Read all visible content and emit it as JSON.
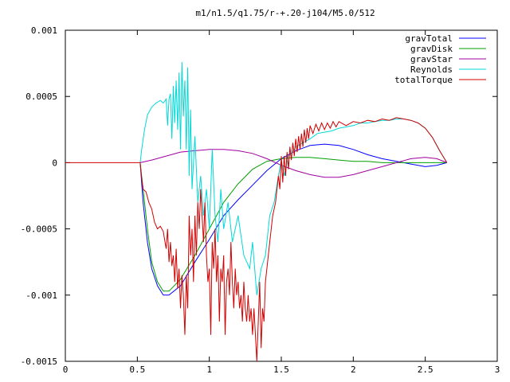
{
  "chart_data": {
    "type": "line",
    "title": "m1/n1.5/q1.75/r-+.20-j104/M5.0/512",
    "xlabel": "",
    "ylabel": "",
    "xlim": [
      0,
      3
    ],
    "ylim": [
      -0.0015,
      0.001
    ],
    "grid": false,
    "legend_placement": "top-right",
    "x_ticks": [
      "0",
      "0.5",
      "1",
      "1.5",
      "2",
      "2.5",
      "3"
    ],
    "y_ticks": [
      "0.001",
      "0.0005",
      "0",
      "-0.0005",
      "-0.001",
      "-0.0015"
    ],
    "series": [
      {
        "name": "gravTotal",
        "color": "#0000ff",
        "points": [
          [
            0.52,
            0
          ],
          [
            0.54,
            -0.0003
          ],
          [
            0.57,
            -0.0006
          ],
          [
            0.6,
            -0.0008
          ],
          [
            0.64,
            -0.00093
          ],
          [
            0.68,
            -0.001
          ],
          [
            0.72,
            -0.001
          ],
          [
            0.8,
            -0.00093
          ],
          [
            0.9,
            -0.00075
          ],
          [
            1.0,
            -0.00058
          ],
          [
            1.1,
            -0.0004
          ],
          [
            1.2,
            -0.00028
          ],
          [
            1.3,
            -0.00017
          ],
          [
            1.4,
            -6e-05
          ],
          [
            1.5,
            3e-05
          ],
          [
            1.6,
            9e-05
          ],
          [
            1.7,
            0.00013
          ],
          [
            1.8,
            0.00014
          ],
          [
            1.9,
            0.00013
          ],
          [
            2.0,
            0.0001
          ],
          [
            2.1,
            6e-05
          ],
          [
            2.2,
            3e-05
          ],
          [
            2.3,
            1e-05
          ],
          [
            2.4,
            -1e-05
          ],
          [
            2.5,
            -3e-05
          ],
          [
            2.58,
            -2e-05
          ],
          [
            2.65,
            0
          ]
        ]
      },
      {
        "name": "gravDisk",
        "color": "#00a000",
        "points": [
          [
            0.52,
            0
          ],
          [
            0.54,
            -0.0002
          ],
          [
            0.57,
            -0.0005
          ],
          [
            0.6,
            -0.00075
          ],
          [
            0.64,
            -0.0009
          ],
          [
            0.68,
            -0.00097
          ],
          [
            0.72,
            -0.00097
          ],
          [
            0.8,
            -0.00088
          ],
          [
            0.9,
            -0.0007
          ],
          [
            1.0,
            -0.0005
          ],
          [
            1.1,
            -0.0003
          ],
          [
            1.2,
            -0.00016
          ],
          [
            1.3,
            -5e-05
          ],
          [
            1.4,
            1e-05
          ],
          [
            1.5,
            3e-05
          ],
          [
            1.6,
            4e-05
          ],
          [
            1.7,
            4e-05
          ],
          [
            1.8,
            3e-05
          ],
          [
            1.9,
            2e-05
          ],
          [
            2.0,
            1e-05
          ],
          [
            2.1,
            1e-05
          ],
          [
            2.2,
            0
          ],
          [
            2.3,
            0
          ],
          [
            2.4,
            0
          ],
          [
            2.5,
            0
          ],
          [
            2.58,
            0
          ],
          [
            2.65,
            0
          ]
        ]
      },
      {
        "name": "gravStar",
        "color": "#a000a0",
        "points": [
          [
            0.52,
            0
          ],
          [
            0.6,
            2e-05
          ],
          [
            0.7,
            5e-05
          ],
          [
            0.8,
            8e-05
          ],
          [
            0.9,
            9e-05
          ],
          [
            1.0,
            0.0001
          ],
          [
            1.1,
            0.0001
          ],
          [
            1.2,
            9e-05
          ],
          [
            1.3,
            7e-05
          ],
          [
            1.4,
            3e-05
          ],
          [
            1.5,
            -2e-05
          ],
          [
            1.6,
            -6e-05
          ],
          [
            1.7,
            -9e-05
          ],
          [
            1.8,
            -0.00011
          ],
          [
            1.9,
            -0.00011
          ],
          [
            2.0,
            -9e-05
          ],
          [
            2.1,
            -6e-05
          ],
          [
            2.2,
            -3e-05
          ],
          [
            2.3,
            0
          ],
          [
            2.4,
            3e-05
          ],
          [
            2.5,
            4e-05
          ],
          [
            2.58,
            3e-05
          ],
          [
            2.65,
            0
          ]
        ]
      },
      {
        "name": "Reynolds",
        "color": "#00d8d8",
        "points": [
          [
            0.52,
            0
          ],
          [
            0.53,
            0.0001
          ],
          [
            0.55,
            0.00025
          ],
          [
            0.57,
            0.00036
          ],
          [
            0.6,
            0.00042
          ],
          [
            0.63,
            0.00045
          ],
          [
            0.66,
            0.00047
          ],
          [
            0.68,
            0.00045
          ],
          [
            0.7,
            0.00048
          ],
          [
            0.71,
            0.00028
          ],
          [
            0.72,
            0.00048
          ],
          [
            0.73,
            0.00052
          ],
          [
            0.74,
            0.00018
          ],
          [
            0.75,
            0.00058
          ],
          [
            0.76,
            0.0003
          ],
          [
            0.77,
            0.00062
          ],
          [
            0.78,
            0.00025
          ],
          [
            0.79,
            0.00068
          ],
          [
            0.8,
            0.0001
          ],
          [
            0.81,
            0.00076
          ],
          [
            0.82,
            0.00035
          ],
          [
            0.83,
            0.00062
          ],
          [
            0.84,
            0.0001
          ],
          [
            0.85,
            0.00072
          ],
          [
            0.86,
            -0.0001
          ],
          [
            0.87,
            0.0004
          ],
          [
            0.88,
            -0.0002
          ],
          [
            0.9,
            0.0002
          ],
          [
            0.92,
            -0.0003
          ],
          [
            0.94,
            -0.0001
          ],
          [
            0.96,
            -0.0004
          ],
          [
            0.98,
            -0.0002
          ],
          [
            1.0,
            -0.0005
          ],
          [
            1.02,
            0.0001
          ],
          [
            1.04,
            -0.0004
          ],
          [
            1.06,
            -0.0006
          ],
          [
            1.08,
            -0.0002
          ],
          [
            1.1,
            -0.0005
          ],
          [
            1.13,
            -0.0003
          ],
          [
            1.16,
            -0.0006
          ],
          [
            1.2,
            -0.0004
          ],
          [
            1.24,
            -0.0007
          ],
          [
            1.28,
            -0.0008
          ],
          [
            1.3,
            -0.0006
          ],
          [
            1.33,
            -0.001
          ],
          [
            1.36,
            -0.0008
          ],
          [
            1.39,
            -0.0007
          ],
          [
            1.42,
            -0.0004
          ],
          [
            1.45,
            -0.0003
          ],
          [
            1.48,
            -0.0001
          ],
          [
            1.5,
            2e-05
          ],
          [
            1.52,
            -0.0001
          ],
          [
            1.55,
            5e-05
          ],
          [
            1.58,
            8e-05
          ],
          [
            1.6,
            0.00012
          ],
          [
            1.65,
            0.00015
          ],
          [
            1.7,
            0.00018
          ],
          [
            1.75,
            0.00022
          ],
          [
            1.8,
            0.00023
          ],
          [
            1.85,
            0.00024
          ],
          [
            1.9,
            0.00026
          ],
          [
            1.95,
            0.00027
          ],
          [
            2.0,
            0.00028
          ],
          [
            2.05,
            0.0003
          ],
          [
            2.1,
            0.0003
          ],
          [
            2.15,
            0.00031
          ],
          [
            2.2,
            0.00032
          ],
          [
            2.25,
            0.00032
          ],
          [
            2.3,
            0.00033
          ],
          [
            2.35,
            0.00033
          ],
          [
            2.4,
            0.00032
          ],
          [
            2.45,
            0.0003
          ],
          [
            2.5,
            0.00026
          ],
          [
            2.55,
            0.00019
          ],
          [
            2.6,
            9e-05
          ],
          [
            2.65,
            0
          ]
        ]
      },
      {
        "name": "totalTorque",
        "color": "#d00000",
        "points": [
          [
            0,
            0
          ],
          [
            0.52,
            0
          ],
          [
            0.53,
            -0.00012
          ],
          [
            0.54,
            -0.0002
          ],
          [
            0.56,
            -0.00022
          ],
          [
            0.58,
            -0.0003
          ],
          [
            0.6,
            -0.00035
          ],
          [
            0.62,
            -0.00045
          ],
          [
            0.64,
            -0.0005
          ],
          [
            0.66,
            -0.00048
          ],
          [
            0.68,
            -0.00052
          ],
          [
            0.7,
            -0.00065
          ],
          [
            0.71,
            -0.0005
          ],
          [
            0.72,
            -0.00075
          ],
          [
            0.73,
            -0.0006
          ],
          [
            0.74,
            -0.00078
          ],
          [
            0.75,
            -0.0007
          ],
          [
            0.76,
            -0.0009
          ],
          [
            0.77,
            -0.00065
          ],
          [
            0.78,
            -0.00095
          ],
          [
            0.79,
            -0.0008
          ],
          [
            0.8,
            -0.0011
          ],
          [
            0.81,
            -0.00085
          ],
          [
            0.82,
            -0.001
          ],
          [
            0.83,
            -0.0013
          ],
          [
            0.84,
            -0.00085
          ],
          [
            0.85,
            -0.0011
          ],
          [
            0.86,
            -0.0004
          ],
          [
            0.87,
            -0.0007
          ],
          [
            0.88,
            -0.0005
          ],
          [
            0.89,
            -0.0009
          ],
          [
            0.9,
            -0.0004
          ],
          [
            0.91,
            -0.0007
          ],
          [
            0.92,
            -0.0003
          ],
          [
            0.93,
            -0.0005
          ],
          [
            0.94,
            -0.0002
          ],
          [
            0.95,
            -0.0004
          ],
          [
            0.96,
            -0.0006
          ],
          [
            0.97,
            -0.0003
          ],
          [
            0.98,
            -0.0007
          ],
          [
            0.99,
            -0.0009
          ],
          [
            1.0,
            -0.0008
          ],
          [
            1.01,
            -0.0013
          ],
          [
            1.02,
            -0.0006
          ],
          [
            1.03,
            -0.0008
          ],
          [
            1.04,
            -0.0005
          ],
          [
            1.05,
            -0.0009
          ],
          [
            1.06,
            -0.0007
          ],
          [
            1.07,
            -0.0012
          ],
          [
            1.08,
            -0.0008
          ],
          [
            1.09,
            -0.0009
          ],
          [
            1.1,
            -0.0007
          ],
          [
            1.11,
            -0.0013
          ],
          [
            1.12,
            -0.0009
          ],
          [
            1.13,
            -0.0008
          ],
          [
            1.14,
            -0.001
          ],
          [
            1.15,
            -0.0006
          ],
          [
            1.16,
            -0.0009
          ],
          [
            1.17,
            -0.0011
          ],
          [
            1.18,
            -0.0008
          ],
          [
            1.19,
            -0.001
          ],
          [
            1.2,
            -0.0009
          ],
          [
            1.21,
            -0.0011
          ],
          [
            1.22,
            -0.001
          ],
          [
            1.23,
            -0.0012
          ],
          [
            1.24,
            -0.0009
          ],
          [
            1.25,
            -0.0011
          ],
          [
            1.26,
            -0.0012
          ],
          [
            1.27,
            -0.001
          ],
          [
            1.28,
            -0.0012
          ],
          [
            1.29,
            -0.0011
          ],
          [
            1.3,
            -0.0013
          ],
          [
            1.31,
            -0.0011
          ],
          [
            1.32,
            -0.0013
          ],
          [
            1.33,
            -0.0015
          ],
          [
            1.34,
            -0.0012
          ],
          [
            1.35,
            -0.0009
          ],
          [
            1.36,
            -0.0014
          ],
          [
            1.37,
            -0.0011
          ],
          [
            1.38,
            -0.0012
          ],
          [
            1.39,
            -0.0009
          ],
          [
            1.4,
            -0.0008
          ],
          [
            1.42,
            -0.0006
          ],
          [
            1.44,
            -0.0004
          ],
          [
            1.46,
            -0.0003
          ],
          [
            1.48,
            -0.0001
          ],
          [
            1.49,
            -0.0002
          ],
          [
            1.5,
            5e-05
          ],
          [
            1.51,
            -0.00015
          ],
          [
            1.52,
            5e-05
          ],
          [
            1.53,
            -0.0001
          ],
          [
            1.54,
            8e-05
          ],
          [
            1.55,
            -5e-05
          ],
          [
            1.56,
            0.00012
          ],
          [
            1.57,
            2e-05
          ],
          [
            1.58,
            0.00015
          ],
          [
            1.59,
            5e-05
          ],
          [
            1.6,
            0.00018
          ],
          [
            1.61,
            8e-05
          ],
          [
            1.62,
            0.0002
          ],
          [
            1.63,
            0.0001
          ],
          [
            1.64,
            0.00022
          ],
          [
            1.65,
            0.00012
          ],
          [
            1.66,
            0.00025
          ],
          [
            1.67,
            0.00015
          ],
          [
            1.68,
            0.00026
          ],
          [
            1.69,
            0.00018
          ],
          [
            1.7,
            0.00028
          ],
          [
            1.72,
            0.00022
          ],
          [
            1.74,
            0.00029
          ],
          [
            1.76,
            0.00024
          ],
          [
            1.78,
            0.0003
          ],
          [
            1.8,
            0.00025
          ],
          [
            1.82,
            0.0003
          ],
          [
            1.84,
            0.00026
          ],
          [
            1.86,
            0.00031
          ],
          [
            1.88,
            0.00027
          ],
          [
            1.9,
            0.00031
          ],
          [
            1.95,
            0.00028
          ],
          [
            2.0,
            0.00031
          ],
          [
            2.05,
            0.0003
          ],
          [
            2.1,
            0.00032
          ],
          [
            2.15,
            0.00031
          ],
          [
            2.2,
            0.00033
          ],
          [
            2.25,
            0.00032
          ],
          [
            2.3,
            0.00034
          ],
          [
            2.35,
            0.00033
          ],
          [
            2.4,
            0.00032
          ],
          [
            2.45,
            0.0003
          ],
          [
            2.5,
            0.00026
          ],
          [
            2.55,
            0.00019
          ],
          [
            2.6,
            9e-05
          ],
          [
            2.65,
            0
          ]
        ]
      }
    ]
  }
}
